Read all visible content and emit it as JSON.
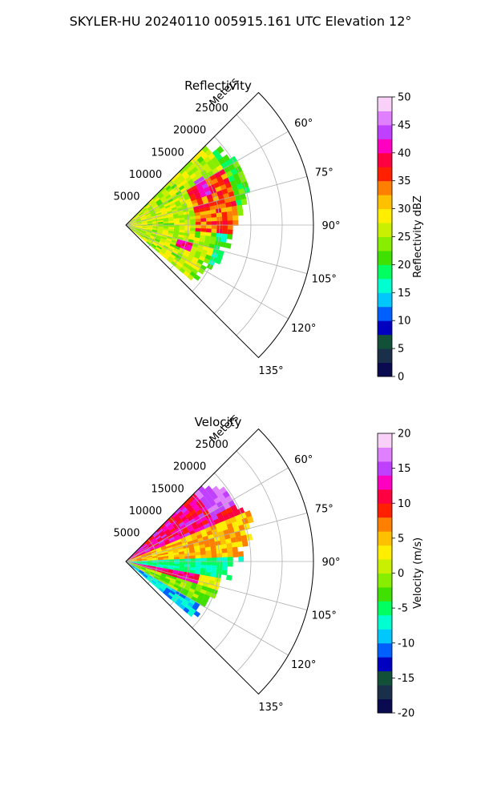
{
  "figure": {
    "title": "SKYLER-HU  20240110  005915.161 UTC Elevation 12°"
  },
  "chart_data": [
    {
      "type": "heatmap",
      "title": "Reflectivity",
      "projection": "polar-sector",
      "theta_range_deg": [
        45,
        135
      ],
      "theta_ticks": [
        "60°",
        "75°",
        "90°",
        "105°",
        "120°",
        "135°"
      ],
      "theta_tick_values": [
        60,
        75,
        90,
        105,
        120,
        135
      ],
      "r_axis_label": "Meters",
      "r_max": 30000,
      "r_ticks": [
        "5000",
        "10000",
        "15000",
        "20000",
        "25000"
      ],
      "r_tick_values": [
        5000,
        10000,
        15000,
        20000,
        25000
      ],
      "grid": true,
      "colorbar": {
        "label": "Reflectivity dBZ",
        "range": [
          0,
          50
        ],
        "ticks": [
          "0",
          "5",
          "10",
          "15",
          "20",
          "25",
          "30",
          "35",
          "40",
          "45",
          "50"
        ],
        "tick_values": [
          0,
          5,
          10,
          15,
          20,
          25,
          30,
          35,
          40,
          45,
          50
        ],
        "colors": [
          "#0a0a50",
          "#1a2f4a",
          "#12503a",
          "#0000c0",
          "#0060ff",
          "#00c8ff",
          "#00ffd0",
          "#00ff60",
          "#40e000",
          "#88ee00",
          "#c8f000",
          "#ffee00",
          "#ffc000",
          "#ff8000",
          "#ff2000",
          "#ff0040",
          "#ff00c0",
          "#c040ff",
          "#e080ff",
          "#f8d0f8"
        ]
      }
    },
    {
      "type": "heatmap",
      "title": "Velocity",
      "projection": "polar-sector",
      "theta_range_deg": [
        45,
        135
      ],
      "theta_ticks": [
        "60°",
        "75°",
        "90°",
        "105°",
        "120°",
        "135°"
      ],
      "theta_tick_values": [
        60,
        75,
        90,
        105,
        120,
        135
      ],
      "r_axis_label": "Meters",
      "r_max": 30000,
      "r_ticks": [
        "5000",
        "10000",
        "15000",
        "20000",
        "25000"
      ],
      "r_tick_values": [
        5000,
        10000,
        15000,
        20000,
        25000
      ],
      "grid": true,
      "colorbar": {
        "label": "Velocity (m/s)",
        "range": [
          -20,
          20
        ],
        "ticks": [
          "-20",
          "-15",
          "-10",
          "-5",
          "0",
          "5",
          "10",
          "15",
          "20"
        ],
        "tick_values": [
          -20,
          -15,
          -10,
          -5,
          0,
          5,
          10,
          15,
          20
        ],
        "colors": [
          "#0a0a50",
          "#1a2f4a",
          "#12503a",
          "#0000c0",
          "#0060ff",
          "#00c8ff",
          "#00ffd0",
          "#00ff60",
          "#40e000",
          "#88ee00",
          "#c8f000",
          "#ffee00",
          "#ffc000",
          "#ff8000",
          "#ff2000",
          "#ff0040",
          "#ff00c0",
          "#c040ff",
          "#e080ff",
          "#f8d0f8"
        ]
      }
    }
  ]
}
